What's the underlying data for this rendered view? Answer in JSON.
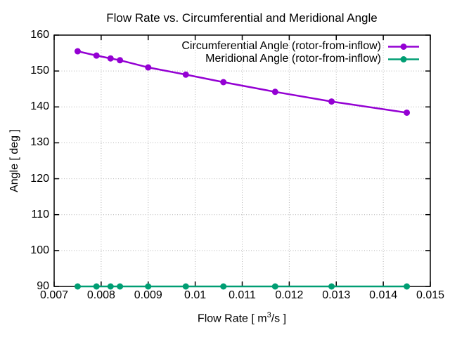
{
  "chart_data": {
    "type": "line",
    "title": "Flow Rate vs. Circumferential and Meridional Angle",
    "xlabel_prefix": "Flow Rate [ m",
    "xlabel_sup": "3",
    "xlabel_suffix": "/s ]",
    "xlabel_full": "Flow Rate [ m³/s ]",
    "ylabel": "Angle [ deg ]",
    "xlim": [
      0.007,
      0.015
    ],
    "ylim": [
      90,
      160
    ],
    "grid": true,
    "legend_position": "top-right-inside",
    "xticks": {
      "values": [
        0.007,
        0.008,
        0.009,
        0.01,
        0.011,
        0.012,
        0.013,
        0.014,
        0.015
      ],
      "labels": [
        "0.007",
        "0.008",
        "0.009",
        "0.01",
        "0.011",
        "0.012",
        "0.013",
        "0.014",
        "0.015"
      ]
    },
    "yticks": {
      "values": [
        90,
        100,
        110,
        120,
        130,
        140,
        150,
        160
      ],
      "labels": [
        "90",
        "100",
        "110",
        "120",
        "130",
        "140",
        "150",
        "160"
      ]
    },
    "x": [
      0.0075,
      0.0079,
      0.0082,
      0.0084,
      0.009,
      0.0098,
      0.0106,
      0.0117,
      0.0129,
      0.0145
    ],
    "series": [
      {
        "name": "Circumferential Angle (rotor-from-inflow)",
        "color": "#9400D3",
        "marker": "circle",
        "y": [
          155.5,
          154.3,
          153.5,
          153.0,
          151.0,
          149.0,
          146.9,
          144.2,
          141.5,
          138.4
        ]
      },
      {
        "name": "Meridional Angle (rotor-from-inflow)",
        "color": "#009E73",
        "marker": "circle",
        "y": [
          90,
          90,
          90,
          90,
          90,
          90,
          90,
          90,
          90,
          90
        ]
      }
    ],
    "colors": {
      "background": "#ffffff",
      "border": "#000000",
      "grid": "#b5b5b5",
      "text": "#000000"
    }
  }
}
